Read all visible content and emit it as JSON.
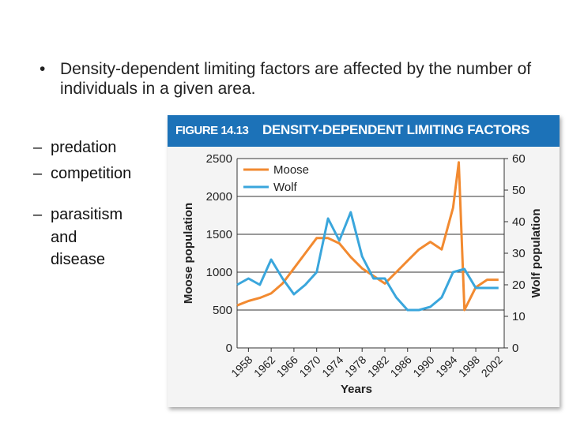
{
  "slide": {
    "bullet": "Density-dependent limiting factors are affected by the number of individuals in a given area.",
    "bullet_marker": "•",
    "sub_marker": "–",
    "subitems": [
      "predation",
      "competition",
      "parasitism",
      "and disease"
    ]
  },
  "figure": {
    "label": "FIGURE 14.13",
    "title": "DENSITY-DEPENDENT LIMITING FACTORS",
    "header_color": "#1c72b8"
  },
  "chart_data": {
    "type": "line",
    "xlabel": "Years",
    "ylabel_left": "Moose population",
    "ylabel_right": "Wolf population",
    "x_ticks": [
      1958,
      1962,
      1966,
      1970,
      1974,
      1978,
      1982,
      1986,
      1990,
      1994,
      1998,
      2002
    ],
    "xlim": [
      1956,
      2003
    ],
    "ylim_left": [
      0,
      2500
    ],
    "yticks_left": [
      0,
      500,
      1000,
      1500,
      2000,
      2500
    ],
    "ylim_right": [
      0,
      60
    ],
    "yticks_right": [
      0,
      10,
      20,
      30,
      40,
      50,
      60
    ],
    "grid": "horizontal",
    "legend": "top-left",
    "series": [
      {
        "name": "Moose",
        "axis": "left",
        "color": "#f28a30",
        "x": [
          1956,
          1958,
          1960,
          1962,
          1964,
          1966,
          1968,
          1970,
          1972,
          1974,
          1976,
          1978,
          1980,
          1982,
          1984,
          1986,
          1988,
          1990,
          1992,
          1994,
          1995,
          1996,
          1998,
          2000,
          2002
        ],
        "y": [
          560,
          620,
          660,
          720,
          850,
          1050,
          1250,
          1450,
          1450,
          1380,
          1200,
          1050,
          950,
          850,
          1000,
          1150,
          1300,
          1400,
          1300,
          1850,
          2450,
          500,
          800,
          900,
          900
        ]
      },
      {
        "name": "Wolf",
        "axis": "right",
        "color": "#3aa6dc",
        "x": [
          1956,
          1958,
          1960,
          1962,
          1964,
          1966,
          1968,
          1970,
          1972,
          1974,
          1976,
          1978,
          1980,
          1982,
          1984,
          1986,
          1988,
          1990,
          1992,
          1994,
          1996,
          1998,
          2000,
          2002
        ],
        "y": [
          20,
          22,
          20,
          28,
          22,
          17,
          20,
          24,
          41,
          34,
          43,
          29,
          22,
          22,
          16,
          12,
          12,
          13,
          16,
          24,
          25,
          19,
          19,
          19
        ]
      }
    ]
  }
}
